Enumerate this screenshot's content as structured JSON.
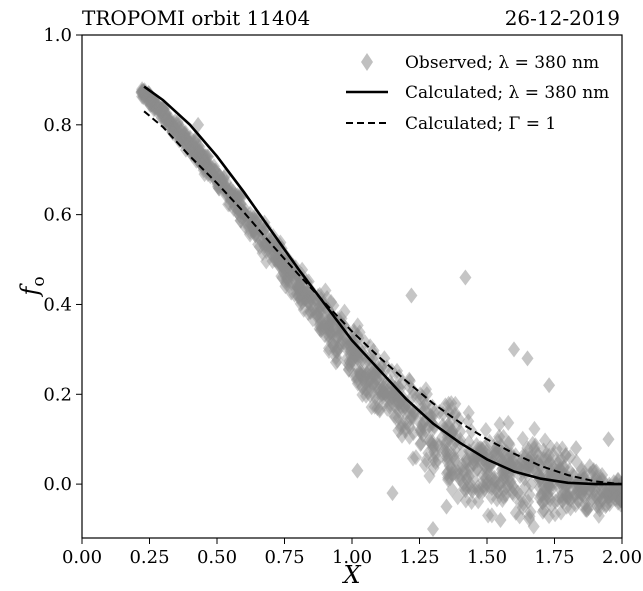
{
  "header": {
    "left_title": "TROPOMI orbit 11404",
    "right_title": "26-12-2019"
  },
  "chart_data": {
    "type": "scatter",
    "xlabel": "X",
    "ylabel": "f",
    "ylabel_subscript": "o",
    "xlim": [
      0.0,
      2.0
    ],
    "ylim": [
      -0.12,
      1.0
    ],
    "x_ticks": [
      0.0,
      0.25,
      0.5,
      0.75,
      1.0,
      1.25,
      1.5,
      1.75,
      2.0
    ],
    "x_tick_labels": [
      "0.00",
      "0.25",
      "0.50",
      "0.75",
      "1.00",
      "1.25",
      "1.50",
      "1.75",
      "2.00"
    ],
    "y_ticks": [
      0.0,
      0.2,
      0.4,
      0.6,
      0.8,
      1.0
    ],
    "y_tick_labels": [
      "0.0",
      "0.2",
      "0.4",
      "0.6",
      "0.8",
      "1.0"
    ],
    "grid": false,
    "legend_position": "top-right",
    "colors": {
      "observed": "#8c8c8c",
      "observed_legend": "#c0c0c0",
      "calculated": "#000000"
    },
    "series": [
      {
        "name": "Observed; λ = 380 nm",
        "kind": "scatter",
        "marker": "diamond",
        "envelope": {
          "x": [
            0.22,
            0.3,
            0.4,
            0.5,
            0.6,
            0.7,
            0.8,
            0.9,
            1.0,
            1.1,
            1.2,
            1.3,
            1.4,
            1.5,
            1.6,
            1.7,
            1.8,
            1.9,
            2.0
          ],
          "lower": [
            0.86,
            0.8,
            0.72,
            0.64,
            0.56,
            0.47,
            0.38,
            0.29,
            0.2,
            0.12,
            0.05,
            -0.02,
            -0.07,
            -0.1,
            -0.11,
            -0.11,
            -0.1,
            -0.08,
            -0.07
          ],
          "upper": [
            0.89,
            0.85,
            0.79,
            0.72,
            0.65,
            0.58,
            0.51,
            0.44,
            0.38,
            0.32,
            0.28,
            0.24,
            0.21,
            0.18,
            0.16,
            0.14,
            0.1,
            0.06,
            0.02
          ]
        },
        "outliers": [
          {
            "x": 1.15,
            "y": -0.02
          },
          {
            "x": 1.02,
            "y": 0.03
          },
          {
            "x": 1.42,
            "y": 0.46
          },
          {
            "x": 1.65,
            "y": 0.28
          },
          {
            "x": 1.73,
            "y": 0.22
          },
          {
            "x": 1.3,
            "y": -0.1
          },
          {
            "x": 1.55,
            "y": -0.08
          },
          {
            "x": 1.83,
            "y": 0.08
          },
          {
            "x": 1.95,
            "y": 0.1
          },
          {
            "x": 0.43,
            "y": 0.8
          },
          {
            "x": 1.22,
            "y": 0.42
          },
          {
            "x": 1.35,
            "y": -0.05
          },
          {
            "x": 1.6,
            "y": 0.3
          }
        ]
      },
      {
        "name": "Calculated; λ = 380 nm",
        "kind": "line",
        "dash": "solid",
        "x": [
          0.23,
          0.3,
          0.4,
          0.5,
          0.6,
          0.7,
          0.8,
          0.9,
          1.0,
          1.1,
          1.2,
          1.3,
          1.4,
          1.5,
          1.6,
          1.7,
          1.8,
          1.9,
          1.95,
          2.0
        ],
        "y": [
          0.885,
          0.855,
          0.8,
          0.73,
          0.65,
          0.565,
          0.48,
          0.4,
          0.32,
          0.255,
          0.19,
          0.135,
          0.092,
          0.055,
          0.028,
          0.012,
          0.003,
          0.0,
          0.0,
          0.0
        ]
      },
      {
        "name": "Calculated; Γ = 1",
        "kind": "line",
        "dash": "dashed",
        "x": [
          0.23,
          0.3,
          0.4,
          0.5,
          0.6,
          0.7,
          0.8,
          0.9,
          1.0,
          1.1,
          1.2,
          1.3,
          1.4,
          1.5,
          1.6,
          1.7,
          1.8,
          1.9,
          2.0
        ],
        "y": [
          0.83,
          0.795,
          0.73,
          0.67,
          0.605,
          0.535,
          0.468,
          0.403,
          0.34,
          0.283,
          0.23,
          0.18,
          0.137,
          0.1,
          0.068,
          0.04,
          0.02,
          0.006,
          0.0
        ]
      }
    ]
  }
}
